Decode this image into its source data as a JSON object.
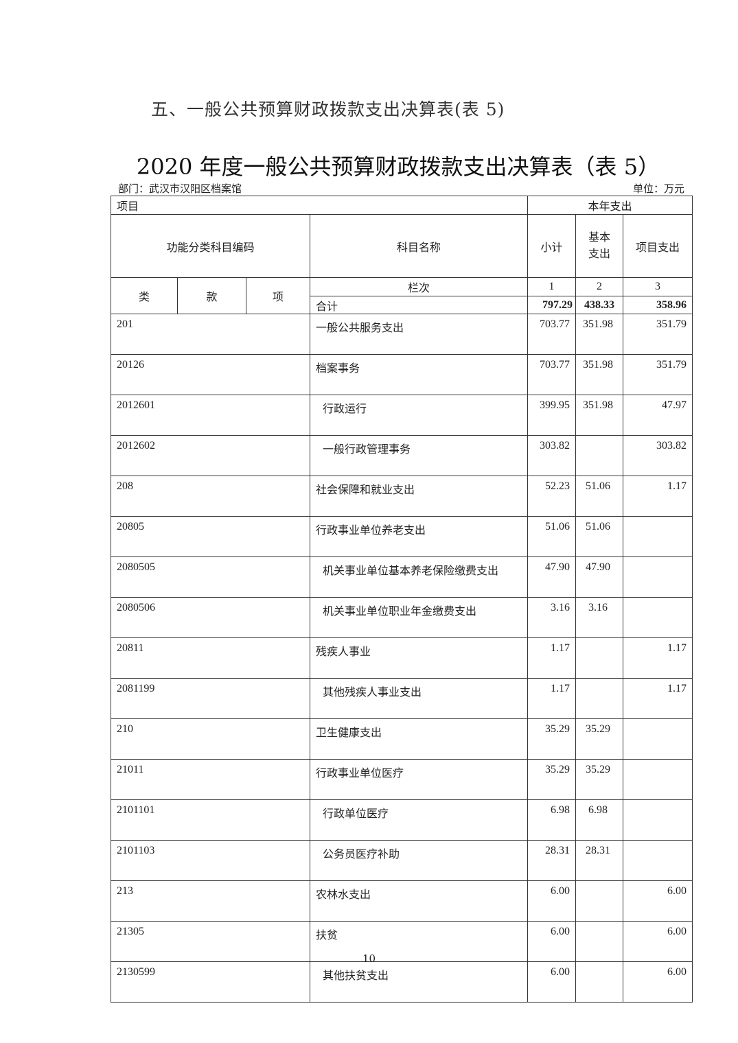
{
  "section_heading": "五、一般公共预算财政拨款支出决算表(表 5)",
  "table_title": "2020 年度一般公共预算财政拨款支出决算表（表 5）",
  "department": "部门：武汉市汉阳区档案馆",
  "unit": "单位：万元",
  "header": {
    "item": "项目",
    "current_year": "本年支出",
    "code": "功能分类科目编码",
    "name": "科目名称",
    "subtotal": "小计",
    "basic": "基本\n支出",
    "project": "项目支出",
    "lei": "类",
    "kuan": "款",
    "xiang": "项",
    "column_order": "栏次",
    "col1": "1",
    "col2": "2",
    "col3": "3"
  },
  "total": {
    "label": "合计",
    "subtotal": "797.29",
    "basic": "438.33",
    "project": "358.96"
  },
  "rows": [
    {
      "code": "201",
      "name": "一般公共服务支出",
      "indent": false,
      "subtotal": "703.77",
      "basic": "351.98",
      "project": "351.79"
    },
    {
      "code": "20126",
      "name": "档案事务",
      "indent": false,
      "subtotal": "703.77",
      "basic": "351.98",
      "project": "351.79"
    },
    {
      "code": "2012601",
      "name": "行政运行",
      "indent": true,
      "subtotal": "399.95",
      "basic": "351.98",
      "project": "47.97"
    },
    {
      "code": "2012602",
      "name": "一般行政管理事务",
      "indent": true,
      "subtotal": "303.82",
      "basic": "",
      "project": "303.82"
    },
    {
      "code": "208",
      "name": "社会保障和就业支出",
      "indent": false,
      "subtotal": "52.23",
      "basic": "51.06",
      "project": "1.17"
    },
    {
      "code": "20805",
      "name": "行政事业单位养老支出",
      "indent": false,
      "subtotal": "51.06",
      "basic": "51.06",
      "project": ""
    },
    {
      "code": "2080505",
      "name": "机关事业单位基本养老保险缴费支出",
      "indent": true,
      "subtotal": "47.90",
      "basic": "47.90",
      "project": ""
    },
    {
      "code": "2080506",
      "name": "机关事业单位职业年金缴费支出",
      "indent": true,
      "subtotal": "3.16",
      "basic": "3.16",
      "project": ""
    },
    {
      "code": "20811",
      "name": "残疾人事业",
      "indent": false,
      "subtotal": "1.17",
      "basic": "",
      "project": "1.17"
    },
    {
      "code": "2081199",
      "name": "其他残疾人事业支出",
      "indent": true,
      "subtotal": "1.17",
      "basic": "",
      "project": "1.17"
    },
    {
      "code": "210",
      "name": "卫生健康支出",
      "indent": false,
      "subtotal": "35.29",
      "basic": "35.29",
      "project": ""
    },
    {
      "code": "21011",
      "name": "行政事业单位医疗",
      "indent": false,
      "subtotal": "35.29",
      "basic": "35.29",
      "project": ""
    },
    {
      "code": "2101101",
      "name": "行政单位医疗",
      "indent": true,
      "subtotal": "6.98",
      "basic": "6.98",
      "project": ""
    },
    {
      "code": "2101103",
      "name": "公务员医疗补助",
      "indent": true,
      "subtotal": "28.31",
      "basic": "28.31",
      "project": ""
    },
    {
      "code": "213",
      "name": "农林水支出",
      "indent": false,
      "subtotal": "6.00",
      "basic": "",
      "project": "6.00"
    },
    {
      "code": "21305",
      "name": "扶贫",
      "indent": false,
      "subtotal": "6.00",
      "basic": "",
      "project": "6.00"
    },
    {
      "code": "2130599",
      "name": "其他扶贫支出",
      "indent": true,
      "subtotal": "6.00",
      "basic": "",
      "project": "6.00"
    }
  ],
  "page_number": "10"
}
